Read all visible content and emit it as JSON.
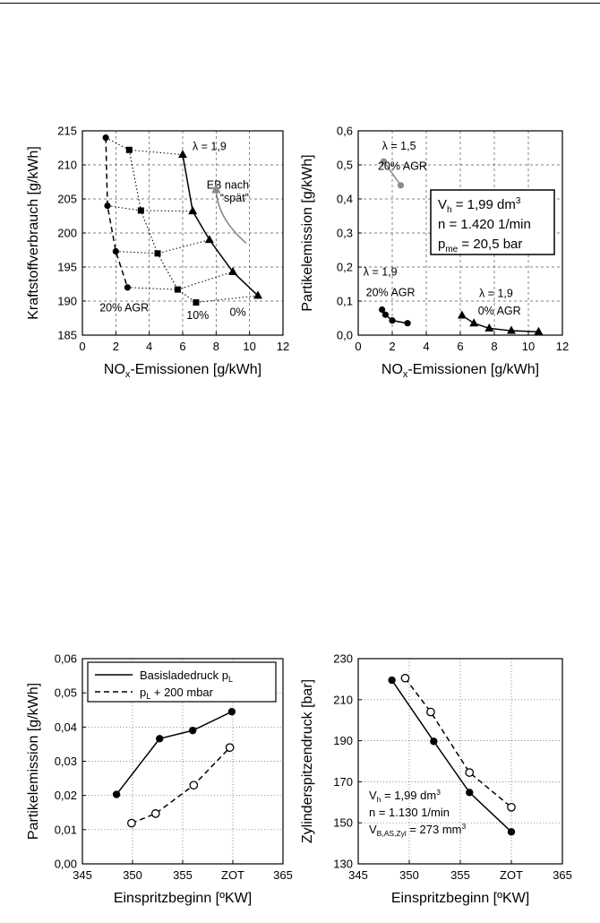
{
  "chart_data": [
    {
      "type": "line",
      "xlabel": "NOx-Emissionen [g/kWh]",
      "ylabel": "Kraftstoffverbrauch [g/kWh]",
      "xlim": [
        0,
        12
      ],
      "ylim": [
        185,
        215
      ],
      "xticks": [
        "0",
        "2",
        "4",
        "6",
        "8",
        "10",
        "12"
      ],
      "yticks": [
        "185",
        "190",
        "195",
        "200",
        "205",
        "210",
        "215"
      ],
      "grid": "dashed",
      "series": [
        {
          "name": "0%",
          "marker": "triangle",
          "line": "solid",
          "x": [
            6.0,
            6.6,
            7.6,
            9.0,
            10.5
          ],
          "y": [
            211.5,
            203.2,
            199.0,
            194.3,
            190.8
          ]
        },
        {
          "name": "10%",
          "marker": "square",
          "line": "dotted",
          "x": [
            2.8,
            3.5,
            4.5,
            5.7,
            6.8
          ],
          "y": [
            212.2,
            203.3,
            197.0,
            191.7,
            189.8
          ]
        },
        {
          "name": "20% AGR",
          "marker": "circle",
          "line": "dashed",
          "x": [
            1.4,
            1.5,
            2.0,
            2.7
          ],
          "y": [
            214.0,
            204.0,
            197.3,
            192.0
          ]
        }
      ],
      "connectors": [
        {
          "x": [
            1.4,
            2.8,
            6.0
          ],
          "y": [
            214.0,
            212.2,
            211.5
          ]
        },
        {
          "x": [
            1.5,
            3.5,
            6.6
          ],
          "y": [
            204.0,
            203.3,
            203.2
          ]
        },
        {
          "x": [
            2.0,
            4.5,
            7.6
          ],
          "y": [
            197.3,
            197.0,
            199.0
          ]
        },
        {
          "x": [
            2.7,
            5.7,
            9.0
          ],
          "y": [
            192.0,
            191.7,
            194.3
          ]
        },
        {
          "x": [
            6.8,
            10.5
          ],
          "y": [
            189.8,
            190.8
          ]
        }
      ],
      "annotations": [
        {
          "text": "λ = 1,9",
          "x": 7.6,
          "y": 212.2
        },
        {
          "text": "EB nach",
          "x": 8.7,
          "y": 206.5
        },
        {
          "text": "“spät”",
          "x": 9.1,
          "y": 204.6
        },
        {
          "text": "20% AGR",
          "x": 2.5,
          "y": 188.5
        },
        {
          "text": "10%",
          "x": 6.9,
          "y": 187.4
        },
        {
          "text": "0%",
          "x": 9.3,
          "y": 187.8
        }
      ],
      "arrow": {
        "from": [
          9.8,
          198.5
        ],
        "to": [
          8.0,
          207.3
        ],
        "color": "#8a8a8a"
      }
    },
    {
      "type": "line",
      "xlabel": "NOx-Emissionen [g/kWh]",
      "ylabel": "Partikelemission [g/kWh]",
      "xlim": [
        0,
        12
      ],
      "ylim": [
        0,
        0.6
      ],
      "xticks": [
        "0",
        "2",
        "4",
        "6",
        "8",
        "10",
        "12"
      ],
      "yticks": [
        "0,0",
        "0,1",
        "0,2",
        "0,3",
        "0,4",
        "0,5",
        "0,6"
      ],
      "grid": "dashed",
      "series": [
        {
          "name": "λ = 1,5 20% AGR",
          "marker": "circle",
          "line": "solid",
          "color": "#8a8a8a",
          "x": [
            1.5,
            2.5
          ],
          "y": [
            0.51,
            0.44
          ]
        },
        {
          "name": "λ = 1,9 20% AGR",
          "marker": "circle",
          "line": "solid",
          "x": [
            1.4,
            1.6,
            2.0,
            2.9
          ],
          "y": [
            0.075,
            0.06,
            0.043,
            0.035
          ]
        },
        {
          "name": "λ = 1,9 0% AGR",
          "marker": "triangle",
          "line": "solid",
          "x": [
            6.1,
            6.8,
            7.7,
            9.0,
            10.6
          ],
          "y": [
            0.058,
            0.035,
            0.02,
            0.013,
            0.01
          ]
        }
      ],
      "annotations": [
        {
          "text": "λ = 1,5",
          "x": 2.4,
          "y": 0.545
        },
        {
          "text": "20% AGR",
          "x": 2.6,
          "y": 0.485
        },
        {
          "text": "λ = 1,9",
          "x": 1.3,
          "y": 0.175
        },
        {
          "text": "20% AGR",
          "x": 1.9,
          "y": 0.115
        },
        {
          "text": "λ = 1,9",
          "x": 8.1,
          "y": 0.112
        },
        {
          "text": "0% AGR",
          "x": 8.3,
          "y": 0.06
        }
      ],
      "infobox": {
        "lines": [
          {
            "main": "V",
            "sub": "h",
            "rest": " = 1,99 dm",
            "sup": "3"
          },
          {
            "main": "n = 1.420 1/min",
            "sub": "",
            "rest": "",
            "sup": ""
          },
          {
            "main": "p",
            "sub": "me",
            "rest": " = 20,5 bar",
            "sup": ""
          }
        ]
      }
    },
    {
      "type": "line",
      "xlabel": "Einspritzbeginn [ºKW]",
      "ylabel": "Partikelemission [g/kWh]",
      "xlim": [
        345,
        365
      ],
      "ylim": [
        0,
        0.06
      ],
      "xticks": [
        "345",
        "350",
        "355",
        "ZOT",
        "365"
      ],
      "yticks": [
        "0,00",
        "0,01",
        "0,02",
        "0,03",
        "0,04",
        "0,05",
        "0,06"
      ],
      "grid": "dotted",
      "series": [
        {
          "name": "Basisladedruck p",
          "name_sub": "L",
          "name_rest": "",
          "marker": "filled-circle",
          "line": "solid",
          "x": [
            348.4,
            352.7,
            356.0,
            359.9
          ],
          "y": [
            0.0203,
            0.0366,
            0.039,
            0.0445
          ]
        },
        {
          "name": "p",
          "name_sub": "L",
          "name_rest": " + 200 mbar",
          "marker": "open-circle",
          "line": "dashed",
          "x": [
            349.9,
            352.3,
            356.1,
            359.7
          ],
          "y": [
            0.0119,
            0.0147,
            0.023,
            0.034
          ]
        }
      ]
    },
    {
      "type": "line",
      "xlabel": "Einspritzbeginn [ºKW]",
      "ylabel": "Zylinderspitzendruck [bar]",
      "xlim": [
        345,
        365
      ],
      "ylim": [
        130,
        230
      ],
      "xticks": [
        "345",
        "350",
        "355",
        "ZOT",
        "365"
      ],
      "yticks": [
        "130",
        "150",
        "170",
        "190",
        "210",
        "230"
      ],
      "grid": "dotted",
      "series": [
        {
          "name": "Basisladedruck",
          "marker": "filled-circle",
          "line": "solid",
          "x": [
            348.3,
            352.4,
            355.9,
            360.0
          ],
          "y": [
            219.5,
            189.7,
            164.8,
            145.6
          ]
        },
        {
          "name": "+200 mbar",
          "marker": "open-circle",
          "line": "dashed",
          "x": [
            349.6,
            352.1,
            355.9,
            360.0
          ],
          "y": [
            220.5,
            204.0,
            174.5,
            157.6
          ]
        }
      ],
      "infobox": {
        "lines": [
          {
            "main": "V",
            "sub": "h",
            "rest": " = 1,99 dm",
            "sup": "3"
          },
          {
            "main": "n = 1.130 1/min",
            "sub": "",
            "rest": "",
            "sup": ""
          },
          {
            "main": "V",
            "sub": "B,AS,Zyl",
            "rest": " = 273 mm",
            "sup": "3"
          }
        ]
      }
    }
  ]
}
